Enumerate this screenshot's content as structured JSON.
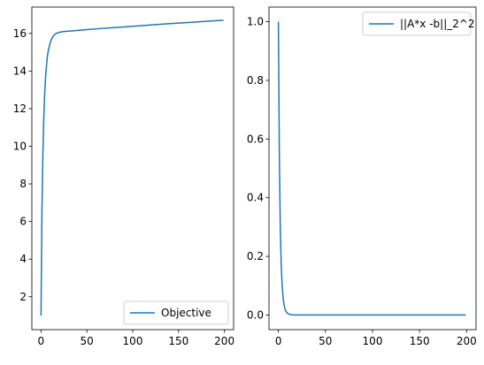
{
  "chart_data": [
    {
      "type": "line",
      "title": "",
      "xlabel": "",
      "ylabel": "",
      "xlim": [
        -10,
        210
      ],
      "ylim": [
        0.25,
        17.4
      ],
      "xticks": [
        0,
        50,
        100,
        150,
        200
      ],
      "yticks": [
        2,
        4,
        6,
        8,
        10,
        12,
        14,
        16
      ],
      "legend_position": "lower-right",
      "series": [
        {
          "name": "Objective",
          "color": "#1f77b4",
          "x": [
            0,
            1,
            2,
            3,
            4,
            5,
            6,
            7,
            8,
            10,
            12,
            14,
            16,
            18,
            20,
            22,
            25,
            30,
            35,
            40,
            50,
            60,
            80,
            100,
            120,
            140,
            160,
            180,
            199
          ],
          "y": [
            1.0,
            6.5,
            9.5,
            11.5,
            12.8,
            13.7,
            14.3,
            14.8,
            15.1,
            15.5,
            15.75,
            15.9,
            15.98,
            16.03,
            16.06,
            16.08,
            16.1,
            16.12,
            16.14,
            16.16,
            16.2,
            16.24,
            16.31,
            16.38,
            16.45,
            16.52,
            16.58,
            16.64,
            16.7
          ]
        }
      ]
    },
    {
      "type": "line",
      "title": "",
      "xlabel": "",
      "ylabel": "",
      "xlim": [
        -10,
        210
      ],
      "ylim": [
        -0.05,
        1.05
      ],
      "xticks": [
        0,
        50,
        100,
        150,
        200
      ],
      "yticks": [
        0.0,
        0.2,
        0.4,
        0.6,
        0.8,
        1.0
      ],
      "legend_position": "upper-right",
      "series": [
        {
          "name": "||A*x -b||_2^2",
          "color": "#1f77b4",
          "x": [
            0,
            1,
            2,
            3,
            4,
            5,
            6,
            7,
            8,
            10,
            12,
            14,
            16,
            20,
            30,
            50,
            100,
            150,
            199
          ],
          "y": [
            1.0,
            0.55,
            0.3,
            0.17,
            0.1,
            0.06,
            0.035,
            0.02,
            0.012,
            0.005,
            0.002,
            0.001,
            0.0005,
            0.0001,
            0.0,
            0.0,
            0.0,
            0.0,
            0.0
          ]
        }
      ]
    }
  ]
}
